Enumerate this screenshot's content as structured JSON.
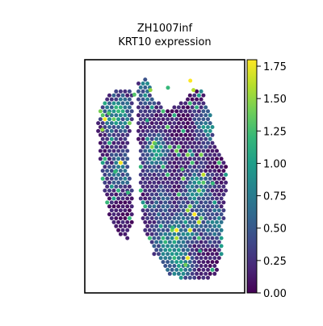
{
  "chart_data": {
    "type": "scatter",
    "title": "ZH1007inf",
    "subtitle": "KRT10 expression",
    "xlabel": "",
    "ylabel": "",
    "grid": false,
    "colormap": "viridis",
    "color_range": [
      0.0,
      1.8
    ],
    "colorbar_ticks": [
      "0.00",
      "0.25",
      "0.50",
      "0.75",
      "1.00",
      "1.25",
      "1.50",
      "1.75"
    ],
    "colorbar_tick_values": [
      0.0,
      0.25,
      0.5,
      0.75,
      1.0,
      1.25,
      1.5,
      1.75
    ],
    "colorbar_placement": "right",
    "xlim": [
      0,
      1
    ],
    "ylim": [
      0,
      1
    ],
    "regions": [
      {
        "name": "left lobe",
        "outline": [
          [
            0.08,
            0.29
          ],
          [
            0.09,
            0.4
          ],
          [
            0.12,
            0.57
          ],
          [
            0.16,
            0.7
          ],
          [
            0.22,
            0.76
          ],
          [
            0.27,
            0.77
          ],
          [
            0.3,
            0.7
          ],
          [
            0.3,
            0.58
          ],
          [
            0.27,
            0.46
          ],
          [
            0.27,
            0.36
          ],
          [
            0.3,
            0.25
          ],
          [
            0.31,
            0.15
          ],
          [
            0.26,
            0.12
          ],
          [
            0.14,
            0.15
          ],
          [
            0.1,
            0.2
          ]
        ]
      },
      {
        "name": "right lobe",
        "outline": [
          [
            0.33,
            0.26
          ],
          [
            0.34,
            0.4
          ],
          [
            0.34,
            0.55
          ],
          [
            0.36,
            0.7
          ],
          [
            0.43,
            0.83
          ],
          [
            0.53,
            0.92
          ],
          [
            0.64,
            0.95
          ],
          [
            0.74,
            0.95
          ],
          [
            0.82,
            0.92
          ],
          [
            0.86,
            0.82
          ],
          [
            0.87,
            0.68
          ],
          [
            0.89,
            0.53
          ],
          [
            0.88,
            0.42
          ],
          [
            0.82,
            0.37
          ],
          [
            0.78,
            0.22
          ],
          [
            0.73,
            0.12
          ],
          [
            0.62,
            0.17
          ],
          [
            0.52,
            0.22
          ],
          [
            0.45,
            0.18
          ],
          [
            0.38,
            0.08
          ],
          [
            0.33,
            0.1
          ]
        ]
      }
    ],
    "background_level": 0.12,
    "hotspots": [
      {
        "x": 0.52,
        "y": 0.8,
        "value": 1.0
      },
      {
        "x": 0.7,
        "y": 0.55,
        "value": 0.9
      },
      {
        "x": 0.45,
        "y": 0.4,
        "value": 0.8
      },
      {
        "x": 0.22,
        "y": 0.48,
        "value": 0.75
      },
      {
        "x": 0.77,
        "y": 0.28,
        "value": 0.75
      },
      {
        "x": 0.6,
        "y": 0.9,
        "value": 0.8
      },
      {
        "x": 0.2,
        "y": 0.23,
        "value": 1.1
      },
      {
        "x": 0.4,
        "y": 0.12,
        "value": 0.9
      },
      {
        "x": 0.64,
        "y": 0.72,
        "value": 0.7
      },
      {
        "x": 0.82,
        "y": 0.7,
        "value": 0.7
      },
      {
        "x": 0.47,
        "y": 0.62,
        "value": 0.6
      }
    ],
    "bright_points": [
      {
        "x": 0.66,
        "y": 0.09,
        "value": 1.8
      },
      {
        "x": 0.68,
        "y": 0.13,
        "value": 1.6
      },
      {
        "x": 0.11,
        "y": 0.3,
        "value": 1.5
      },
      {
        "x": 0.41,
        "y": 0.13,
        "value": 1.5
      },
      {
        "x": 0.63,
        "y": 0.88,
        "value": 1.4
      },
      {
        "x": 0.15,
        "y": 0.23,
        "value": 1.3
      },
      {
        "x": 0.31,
        "y": 0.15,
        "value": 1.3
      },
      {
        "x": 0.61,
        "y": 0.47,
        "value": 1.3
      },
      {
        "x": 0.44,
        "y": 0.36,
        "value": 1.3
      },
      {
        "x": 0.8,
        "y": 0.53,
        "value": 1.2
      },
      {
        "x": 0.55,
        "y": 0.72,
        "value": 1.2
      },
      {
        "x": 0.19,
        "y": 0.48,
        "value": 1.2
      },
      {
        "x": 0.52,
        "y": 0.12,
        "value": 1.2
      },
      {
        "x": 0.27,
        "y": 0.57,
        "value": 1.2
      },
      {
        "x": 0.39,
        "y": 0.26,
        "value": 1.1
      },
      {
        "x": 0.72,
        "y": 0.82,
        "value": 1.1
      }
    ]
  }
}
